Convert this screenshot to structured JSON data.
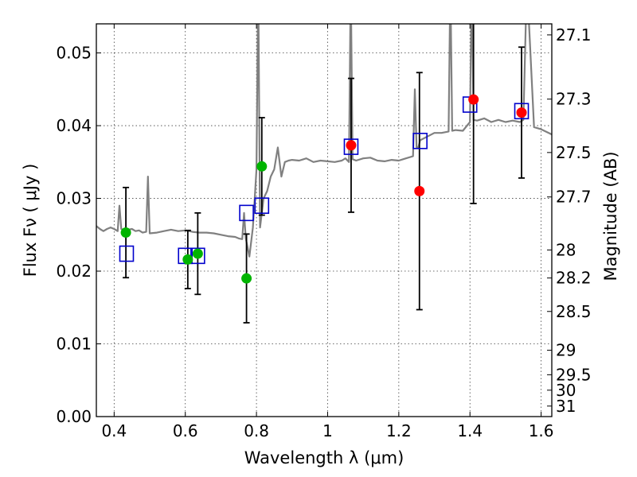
{
  "chart_data": {
    "type": "scatter",
    "xlabel": "Wavelength  λ (μm)",
    "ylabel": "Flux  Fν  ( μJy )",
    "ylabel2": "Magnitude (AB)",
    "xlim": [
      0.35,
      1.63
    ],
    "ylim": [
      0.0,
      0.054
    ],
    "x_ticks": [
      0.4,
      0.6,
      0.8,
      1.0,
      1.2,
      1.4,
      1.6
    ],
    "x_tick_labels": [
      "0.4",
      "0.6",
      "0.8",
      "1",
      "1.2",
      "1.4",
      "1.6"
    ],
    "y_ticks": [
      0.0,
      0.01,
      0.02,
      0.03,
      0.04,
      0.05
    ],
    "y_tick_labels": [
      "0.00",
      "0.01",
      "0.02",
      "0.03",
      "0.04",
      "0.05"
    ],
    "mag_ticks": [
      27.1,
      27.3,
      27.5,
      27.7,
      28,
      28.2,
      28.5,
      29,
      29.5,
      30,
      31
    ],
    "mag_tick_labels": [
      "27.1",
      "27.3",
      "27.5",
      "27.7",
      "28",
      "28.2",
      "28.5",
      "29",
      "29.5",
      "30",
      "31"
    ],
    "grid": true,
    "colors": {
      "template": "#808080",
      "model": "#0000cc",
      "green": "#00b400",
      "red": "#ff0000",
      "errorbar": "#000000"
    },
    "series": [
      {
        "kind": "line",
        "color": "#808080",
        "x": [
          0.35,
          0.36,
          0.37,
          0.38,
          0.39,
          0.4,
          0.41,
          0.415,
          0.42,
          0.43,
          0.44,
          0.45,
          0.46,
          0.47,
          0.48,
          0.49,
          0.495,
          0.5,
          0.52,
          0.54,
          0.56,
          0.58,
          0.6,
          0.62,
          0.64,
          0.66,
          0.68,
          0.7,
          0.72,
          0.74,
          0.75,
          0.76,
          0.765,
          0.77,
          0.78,
          0.79,
          0.795,
          0.8,
          0.805,
          0.81,
          0.815,
          0.82,
          0.83,
          0.84,
          0.85,
          0.86,
          0.87,
          0.88,
          0.89,
          0.9,
          0.92,
          0.94,
          0.96,
          0.98,
          1.0,
          1.02,
          1.04,
          1.05,
          1.06,
          1.065,
          1.07,
          1.08,
          1.1,
          1.12,
          1.14,
          1.16,
          1.18,
          1.2,
          1.22,
          1.24,
          1.245,
          1.25,
          1.255,
          1.26,
          1.28,
          1.3,
          1.32,
          1.34,
          1.345,
          1.35,
          1.36,
          1.38,
          1.4,
          1.405,
          1.41,
          1.42,
          1.44,
          1.46,
          1.48,
          1.5,
          1.52,
          1.54,
          1.55,
          1.56,
          1.58,
          1.6,
          1.63
        ],
        "y": [
          0.0262,
          0.0258,
          0.0255,
          0.0258,
          0.026,
          0.0258,
          0.0255,
          0.029,
          0.0258,
          0.0256,
          0.0257,
          0.0258,
          0.0255,
          0.0256,
          0.0253,
          0.0254,
          0.033,
          0.0252,
          0.0253,
          0.0255,
          0.0257,
          0.0255,
          0.0256,
          0.0254,
          0.0253,
          0.0253,
          0.0252,
          0.025,
          0.0248,
          0.0247,
          0.0245,
          0.0244,
          0.028,
          0.0245,
          0.022,
          0.026,
          0.03,
          0.034,
          0.06,
          0.026,
          0.028,
          0.03,
          0.031,
          0.033,
          0.034,
          0.037,
          0.033,
          0.035,
          0.0352,
          0.0353,
          0.0352,
          0.0355,
          0.035,
          0.0352,
          0.0351,
          0.035,
          0.0352,
          0.0355,
          0.035,
          0.06,
          0.0354,
          0.0352,
          0.0355,
          0.0356,
          0.0352,
          0.0351,
          0.0353,
          0.0352,
          0.0355,
          0.0358,
          0.045,
          0.037,
          0.037,
          0.038,
          0.0385,
          0.039,
          0.039,
          0.0392,
          0.06,
          0.0393,
          0.0394,
          0.0393,
          0.0405,
          0.06,
          0.0408,
          0.0407,
          0.041,
          0.0405,
          0.0408,
          0.0405,
          0.0407,
          0.0405,
          0.0408,
          0.06,
          0.0398,
          0.0395,
          0.0388
        ]
      },
      {
        "kind": "error",
        "color": "#000000",
        "x": [
          0.433,
          0.607,
          0.635,
          0.772,
          0.815,
          1.066,
          1.258,
          1.41,
          1.545
        ],
        "y": [
          0.0253,
          0.0216,
          0.0224,
          0.019,
          0.0344,
          0.0373,
          0.031,
          0.0436,
          0.0418
        ],
        "err": [
          0.0062,
          0.004,
          0.0056,
          0.0061,
          0.0067,
          0.0092,
          0.0163,
          0.0143,
          0.009
        ]
      },
      {
        "kind": "square",
        "color": "#0000cc",
        "x": [
          0.435,
          0.6,
          0.635,
          0.772,
          0.815,
          1.066,
          1.26,
          1.4,
          1.545
        ],
        "y": [
          0.0224,
          0.0221,
          0.0221,
          0.028,
          0.029,
          0.0371,
          0.0379,
          0.0429,
          0.042
        ]
      },
      {
        "kind": "circle",
        "color": "#00b400",
        "x": [
          0.433,
          0.607,
          0.635,
          0.772,
          0.815
        ],
        "y": [
          0.0253,
          0.0216,
          0.0224,
          0.019,
          0.0344
        ]
      },
      {
        "kind": "circle",
        "color": "#ff0000",
        "x": [
          1.066,
          1.258,
          1.41,
          1.545
        ],
        "y": [
          0.0373,
          0.031,
          0.0436,
          0.0418
        ]
      }
    ]
  }
}
